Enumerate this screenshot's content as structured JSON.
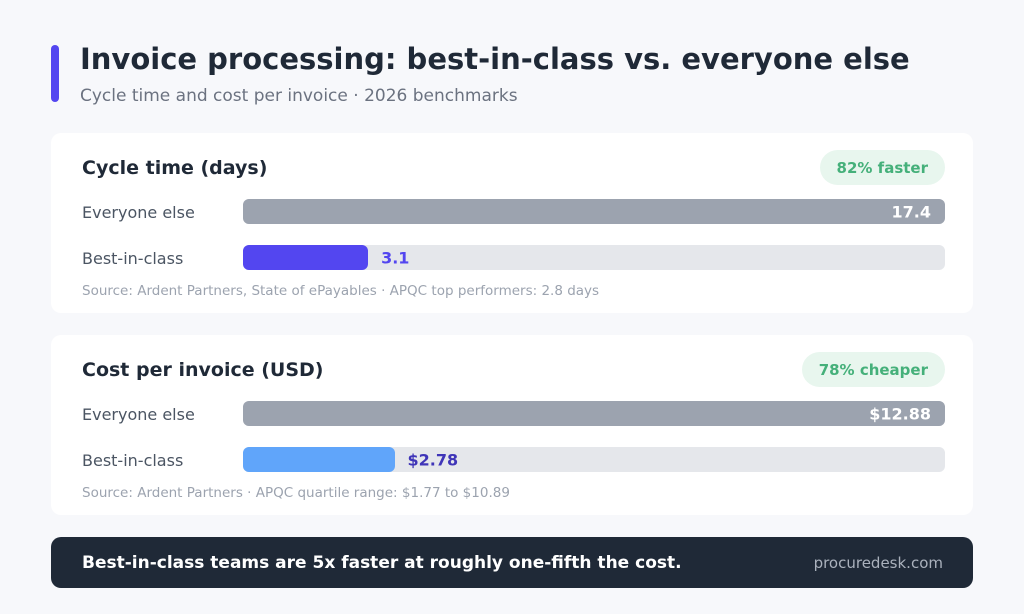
{
  "header": {
    "title": "Invoice processing: best-in-class vs. everyone else",
    "subtitle": "Cycle time and cost per invoice · 2026 benchmarks",
    "accent_color": "#5346f0"
  },
  "chart_data": [
    {
      "type": "bar",
      "orientation": "horizontal",
      "title": "Cycle time (days)",
      "badge": "82% faster",
      "categories": [
        "Everyone else",
        "Best-in-class"
      ],
      "values": [
        17.4,
        3.1
      ],
      "value_labels": [
        "17.4",
        "3.1"
      ],
      "colors": [
        "#9ca3af",
        "#5346f0"
      ],
      "xlim": [
        0,
        17.4
      ],
      "source": "Source: Ardent Partners, State of ePayables · APQC top performers: 2.8 days"
    },
    {
      "type": "bar",
      "orientation": "horizontal",
      "title": "Cost per invoice (USD)",
      "badge": "78% cheaper",
      "categories": [
        "Everyone else",
        "Best-in-class"
      ],
      "values": [
        12.88,
        2.78
      ],
      "value_labels": [
        "$12.88",
        "$2.78"
      ],
      "colors": [
        "#9ca3af",
        "#60a5fa"
      ],
      "value_label_color_outside": "#3f35b8",
      "xlim": [
        0,
        12.88
      ],
      "source": "Source: Ardent Partners · APQC quartile range: $1.77 to $10.89"
    }
  ],
  "footer": {
    "message": "Best-in-class teams are 5x faster at roughly one-fifth the cost.",
    "brand": "procuredesk.com"
  },
  "colors": {
    "track": "#e5e7eb",
    "badge_bg": "#e8f6ee",
    "badge_text": "#45b07a",
    "footer_bg": "#1f2937"
  }
}
